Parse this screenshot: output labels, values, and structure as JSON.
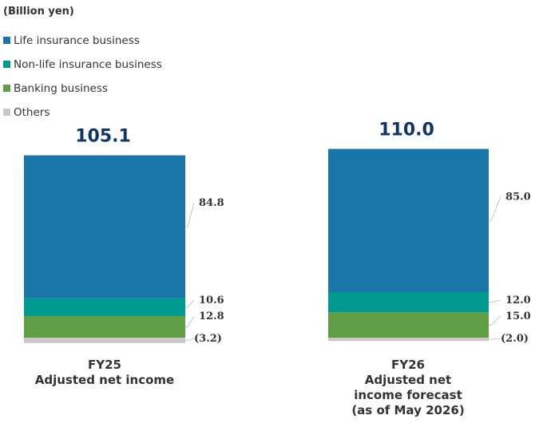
{
  "chart_data": {
    "type": "bar",
    "stacked": true,
    "unit_label": "(Billion yen)",
    "categories": [
      [
        "FY25",
        "Adjusted net income"
      ],
      [
        "FY26",
        "Adjusted net",
        "income forecast",
        "(as of May 2026)"
      ]
    ],
    "totals": [
      "105.1",
      "110.0"
    ],
    "series": [
      {
        "name": "Life insurance business",
        "color": "#1a75a8",
        "values": [
          84.8,
          85.0
        ],
        "labels": [
          "84.8",
          "85.0"
        ]
      },
      {
        "name": "Non-life insurance business",
        "color": "#009a91",
        "values": [
          10.6,
          12.0
        ],
        "labels": [
          "10.6",
          "12.0"
        ]
      },
      {
        "name": "Banking business",
        "color": "#5f9e44",
        "values": [
          12.8,
          15.0
        ],
        "labels": [
          "12.8",
          "15.0"
        ]
      },
      {
        "name": "Others",
        "color": "#c8c8c8",
        "values": [
          -3.2,
          -2.0
        ],
        "labels": [
          "(3.2)",
          "(2.0)"
        ]
      }
    ]
  }
}
